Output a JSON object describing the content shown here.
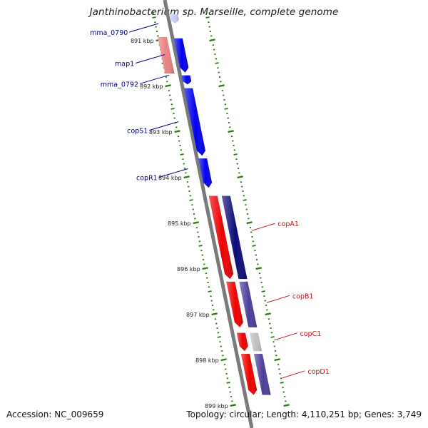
{
  "title": "Janthinobacterium sp. Marseille, complete genome",
  "footer": {
    "accession": "Accession: NC_009659",
    "summary": "Topology: circular; Length: 4,110,251 bp; Genes: 3,749"
  },
  "colors": {
    "backbone": "#7a7a7a",
    "tick": "#2a7a10",
    "label_forward": "#00008b",
    "label_reverse": "#c81414",
    "gene_blue": "#0000ee",
    "gene_red": "#ee0000",
    "gene_pink": "#e88080",
    "gene_navy": "#0c0c78",
    "gene_purple": "#4c3f9a",
    "gene_gray": "#c0c0c0",
    "gene_lavender": "#c8ccf4"
  },
  "scale": {
    "unit": "kbp",
    "tick_labels": [
      "891 kbp",
      "892 kbp",
      "893 kbp",
      "894 kbp",
      "895 kbp",
      "896 kbp",
      "897 kbp",
      "898 kbp",
      "899 kbp"
    ]
  },
  "genes": [
    {
      "label": "",
      "start_kbp": 890.42,
      "end_kbp": 890.62,
      "strand": "+",
      "color": "#c8ccf4"
    },
    {
      "label": "mma_0790",
      "start_kbp": 890.95,
      "end_kbp": 891.7,
      "strand": "+",
      "color": "#0000ee"
    },
    {
      "label": "map1",
      "start_kbp": 890.92,
      "end_kbp": 891.72,
      "strand": "-",
      "color": "#e88080"
    },
    {
      "label": "mma_0792",
      "start_kbp": 891.76,
      "end_kbp": 891.96,
      "strand": "+",
      "color": "#0000ee"
    },
    {
      "label": "copS1",
      "start_kbp": 892.04,
      "end_kbp": 893.52,
      "strand": "+",
      "color": "#0000ee"
    },
    {
      "label": "copR1",
      "start_kbp": 893.58,
      "end_kbp": 894.22,
      "strand": "+",
      "color": "#0000ee"
    },
    {
      "label": "copA1",
      "start_kbp": 894.4,
      "end_kbp": 896.22,
      "strand": "-",
      "color": "#ee0000"
    },
    {
      "label": "",
      "start_kbp": 894.4,
      "end_kbp": 896.22,
      "strand": "rev-cds",
      "color": "#0c0c78"
    },
    {
      "label": "copB1",
      "start_kbp": 896.28,
      "end_kbp": 897.28,
      "strand": "-",
      "color": "#ee0000"
    },
    {
      "label": "",
      "start_kbp": 896.28,
      "end_kbp": 897.28,
      "strand": "rev-cds",
      "color": "#4c3f9a"
    },
    {
      "label": "copC1",
      "start_kbp": 897.4,
      "end_kbp": 897.8,
      "strand": "-",
      "color": "#ee0000"
    },
    {
      "label": "",
      "start_kbp": 897.4,
      "end_kbp": 897.8,
      "strand": "rev-cds",
      "color": "#c0c0c0"
    },
    {
      "label": "copD1",
      "start_kbp": 897.86,
      "end_kbp": 898.76,
      "strand": "-",
      "color": "#ee0000"
    },
    {
      "label": "",
      "start_kbp": 897.86,
      "end_kbp": 898.76,
      "strand": "rev-cds",
      "color": "#4c3f9a"
    }
  ],
  "gene_label_rows": [
    {
      "label": "mma_0790",
      "kbp": 890.75,
      "side": "left"
    },
    {
      "label": "map1",
      "kbp": 891.43,
      "side": "left"
    },
    {
      "label": "mma_0792",
      "kbp": 891.88,
      "side": "left"
    },
    {
      "label": "copS1",
      "kbp": 892.9,
      "side": "left"
    },
    {
      "label": "copR1",
      "kbp": 893.93,
      "side": "left"
    },
    {
      "label": "copA1",
      "kbp": 895.05,
      "side": "right"
    },
    {
      "label": "copB1",
      "kbp": 896.63,
      "side": "right"
    },
    {
      "label": "copC1",
      "kbp": 897.45,
      "side": "right"
    },
    {
      "label": "copD1",
      "kbp": 898.28,
      "side": "right"
    }
  ]
}
